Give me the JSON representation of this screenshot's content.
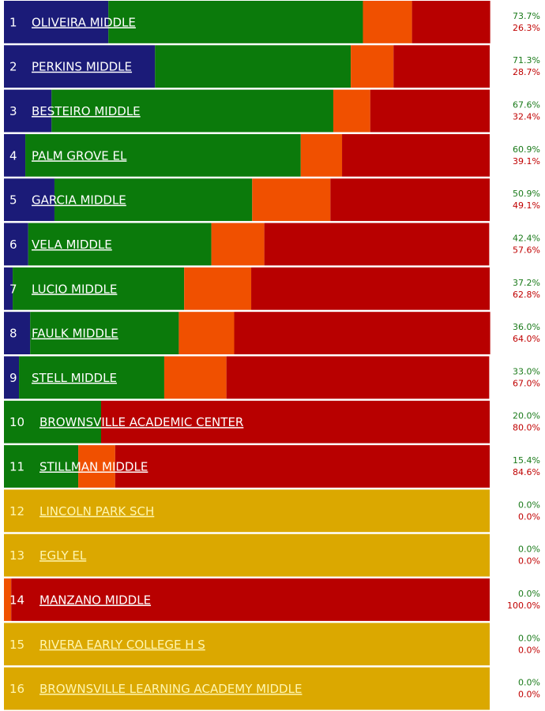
{
  "chart_data": {
    "type": "bar",
    "orientation": "horizontal",
    "stacked": true,
    "ranks": [
      1,
      2,
      3,
      4,
      5,
      6,
      7,
      8,
      9,
      10,
      11,
      12,
      13,
      14,
      15,
      16
    ],
    "categories": [
      "OLIVEIRA MIDDLE",
      "PERKINS MIDDLE",
      "BESTEIRO MIDDLE",
      "PALM GROVE EL",
      "GARCIA MIDDLE",
      "VELA MIDDLE",
      "LUCIO MIDDLE",
      "FAULK MIDDLE",
      "STELL MIDDLE",
      "BROWNSVILLE ACADEMIC CENTER",
      "STILLMAN MIDDLE",
      "LINCOLN PARK SCH",
      "EGLY EL",
      "MANZANO MIDDLE",
      "RIVERA EARLY COLLEGE H S",
      "BROWNSVILLE LEARNING ACADEMY MIDDLE"
    ],
    "xlim": [
      0,
      100
    ],
    "series": [
      {
        "color": "#1b1b78",
        "values": [
          21.5,
          31.1,
          9.8,
          4.4,
          10.4,
          5.0,
          1.8,
          5.4,
          3.1,
          0,
          0,
          0,
          0,
          0,
          0,
          0
        ]
      },
      {
        "color": "#0b7a0b",
        "values": [
          52.4,
          40.3,
          58.0,
          56.7,
          40.7,
          37.7,
          35.3,
          30.6,
          29.9,
          20.0,
          15.3,
          0,
          0,
          0,
          0,
          0
        ]
      },
      {
        "color": "#f05000",
        "values": [
          10.1,
          8.8,
          7.6,
          8.5,
          16.1,
          10.9,
          13.8,
          11.4,
          12.8,
          0,
          7.6,
          0,
          0,
          1.5,
          0,
          0
        ]
      },
      {
        "color": "#b80000",
        "values": [
          16.1,
          19.8,
          24.6,
          30.4,
          32.8,
          46.3,
          49.1,
          52.7,
          54.1,
          80.0,
          77.1,
          0,
          0,
          98.5,
          0,
          0
        ]
      },
      {
        "color": "#dba800",
        "values": [
          0,
          0,
          0,
          0,
          0,
          0,
          0,
          0,
          0,
          0,
          0,
          100,
          100,
          0,
          100,
          100
        ]
      }
    ],
    "pass_rate": {
      "color": "#1a7a1a",
      "values": [
        73.7,
        71.3,
        67.6,
        60.9,
        50.9,
        42.4,
        37.2,
        36.0,
        33.0,
        20.0,
        15.4,
        0,
        0,
        0,
        0,
        0
      ],
      "value_labels": [
        "73.7%",
        "71.3%",
        "67.6%",
        "60.9%",
        "50.9%",
        "42.4%",
        "37.2%",
        "36.0%",
        "33.0%",
        "20.0%",
        "15.4%",
        "0.0%",
        "0.0%",
        "0.0%",
        "0.0%",
        "0.0%"
      ]
    },
    "fail_rate": {
      "color": "#c00000",
      "values": [
        26.3,
        28.7,
        32.4,
        39.1,
        49.1,
        57.6,
        62.8,
        64.0,
        67.0,
        80.0,
        84.6,
        0,
        0,
        100,
        0,
        0
      ],
      "value_labels": [
        "26.3%",
        "28.7%",
        "32.4%",
        "39.1%",
        "49.1%",
        "57.6%",
        "62.8%",
        "64.0%",
        "67.0%",
        "80.0%",
        "84.6%",
        "0.0%",
        "0.0%",
        "100.0%",
        "0.0%",
        "0.0%"
      ]
    }
  }
}
